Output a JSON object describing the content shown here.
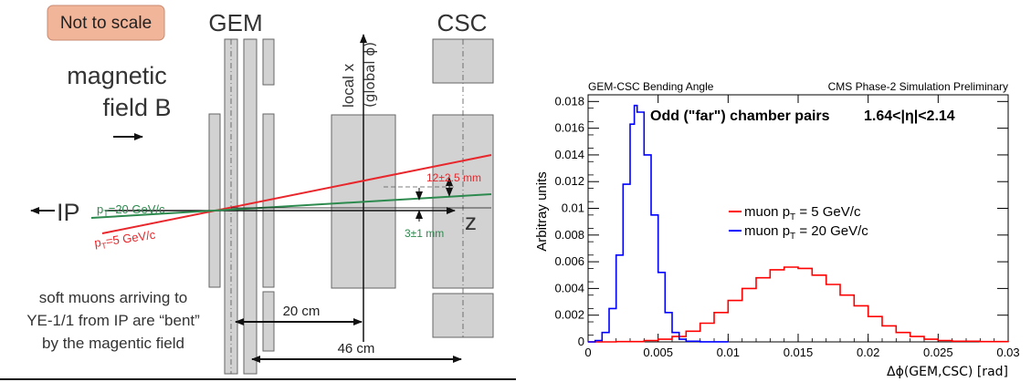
{
  "diagram": {
    "scale_badge": "Not to scale",
    "gem_label": "GEM",
    "csc_label": "CSC",
    "field_line1": "magnetic",
    "field_line2": "field B",
    "ip_label": "IP",
    "z_label": "z",
    "local_x_label": "local x",
    "global_phi_label": "(global ϕ)",
    "track_20_label": "p",
    "track_20_sub": "T",
    "track_20_rest": "=20 GeV/c",
    "track_5_label": "p",
    "track_5_sub": "T",
    "track_5_rest": "=5 GeV/c",
    "delta_12_label": "12±2.5 mm",
    "delta_3_label": "3±1 mm",
    "dist_20": "20 cm",
    "dist_46": "46 cm",
    "caption_line1": "soft muons arriving to",
    "caption_line2": "YE-1/1 from IP are “bent”",
    "caption_line3": "by the magentic field",
    "colors": {
      "red": "#e8262b",
      "green": "#2d8a4e",
      "badge": "#f1b59a",
      "chamber": "#d2d2d2"
    }
  },
  "chart_data": {
    "type": "line",
    "title_left": "GEM-CSC Bending Angle",
    "title_right": "CMS Phase-2 Simulation Preliminary",
    "annotation": "Odd (\"far\") chamber pairs",
    "eta_range": "1.64<|η|<2.14",
    "xlabel": "Δϕ(GEM,CSC) [rad]",
    "ylabel": "Arbitray units",
    "xlim": [
      0,
      0.03
    ],
    "ylim": [
      0,
      0.0185
    ],
    "x_ticks": [
      "0",
      "0.005",
      "0.01",
      "0.015",
      "0.02",
      "0.025",
      "0.03"
    ],
    "y_ticks": [
      "0",
      "0.002",
      "0.004",
      "0.006",
      "0.008",
      "0.01",
      "0.012",
      "0.014",
      "0.016",
      "0.018"
    ],
    "series": [
      {
        "name": "muon p",
        "name_sub": "T",
        "name_rest": " = 5 GeV/c",
        "color": "#ff0000",
        "x": [
          0,
          0.002,
          0.004,
          0.005,
          0.006,
          0.007,
          0.008,
          0.009,
          0.01,
          0.011,
          0.012,
          0.013,
          0.014,
          0.015,
          0.016,
          0.017,
          0.018,
          0.019,
          0.02,
          0.021,
          0.022,
          0.023,
          0.024,
          0.025,
          0.026,
          0.028,
          0.03
        ],
        "y": [
          0,
          2e-05,
          0.0001,
          0.0002,
          0.0004,
          0.0008,
          0.0014,
          0.0022,
          0.0031,
          0.004,
          0.0048,
          0.0054,
          0.0056,
          0.0055,
          0.005,
          0.0043,
          0.0035,
          0.0027,
          0.0019,
          0.0012,
          0.0007,
          0.0004,
          0.0002,
          0.0001,
          5e-05,
          2e-05,
          0
        ]
      },
      {
        "name": "muon p",
        "name_sub": "T",
        "name_rest": " = 20 GeV/c",
        "color": "#0000ff",
        "x": [
          0,
          0.0005,
          0.001,
          0.0015,
          0.002,
          0.0025,
          0.003,
          0.0033,
          0.0035,
          0.004,
          0.0045,
          0.005,
          0.0055,
          0.006,
          0.0065,
          0.007,
          0.008,
          0.01
        ],
        "y": [
          0,
          0.0001,
          0.0007,
          0.0025,
          0.0065,
          0.0118,
          0.0163,
          0.0177,
          0.0172,
          0.014,
          0.0095,
          0.0052,
          0.0022,
          0.0007,
          0.0002,
          5e-05,
          1e-05,
          0
        ]
      }
    ]
  }
}
